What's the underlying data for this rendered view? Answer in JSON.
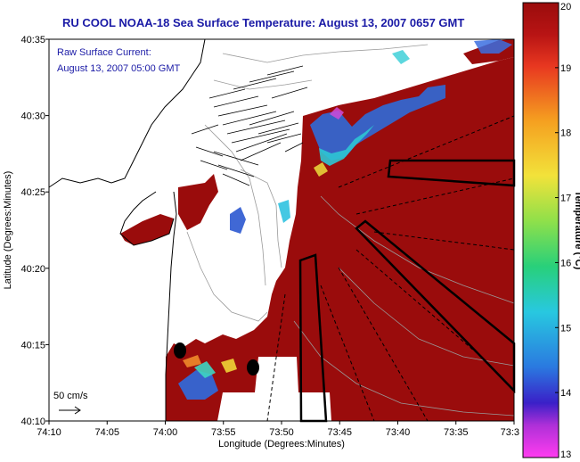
{
  "chart_data": {
    "type": "heatmap",
    "title": "RU COOL  NOAA-18  Sea Surface Temperature:  August 13, 2007 0657 GMT",
    "xlabel": "Longitude (Degrees:Minutes)",
    "ylabel": "Latitude (Degrees:Minutes)",
    "inset_line1": "Raw Surface Current:",
    "inset_line2": "August 13, 2007 05:00 GMT",
    "scale_label": "50 cm/s",
    "x_ticks": [
      "74:10",
      "74:05",
      "74:00",
      "73:55",
      "73:50",
      "73:45",
      "73:40",
      "73:35",
      "73:3"
    ],
    "y_ticks": [
      "40:35",
      "40:30",
      "40:25",
      "40:20",
      "40:15",
      "40:10"
    ],
    "xlim_minutes": [
      -4450,
      -4410
    ],
    "ylim_minutes": [
      2410,
      2435
    ],
    "colorbar": {
      "label": "Temperature (°C)",
      "min": 13,
      "max": 20,
      "ticks": [
        "20",
        "19",
        "18",
        "17",
        "16",
        "15",
        "14",
        "13"
      ]
    },
    "dominant_value_c": 20,
    "legend": "none",
    "grid": false
  },
  "colors": {
    "sst_warm": "#9a0c0c",
    "title": "#1a1aa6",
    "land": "#ffffff"
  }
}
